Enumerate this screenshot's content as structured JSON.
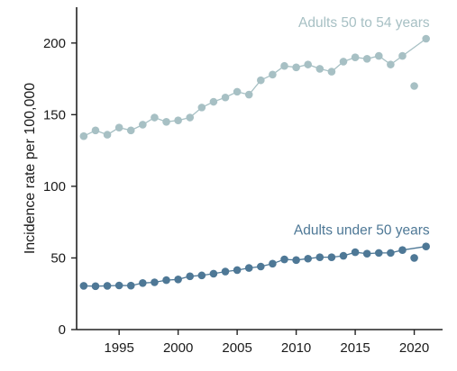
{
  "chart_data": {
    "type": "line",
    "title": "",
    "xlabel": "",
    "ylabel": "Incidence rate per 100,000",
    "xlim": [
      1991.4,
      2022.4
    ],
    "ylim": [
      0,
      225
    ],
    "xticks": [
      1995,
      2000,
      2005,
      2010,
      2015,
      2020
    ],
    "yticks": [
      0,
      50,
      100,
      150,
      200
    ],
    "grid": false,
    "legend": "inline labels",
    "colors": {
      "over50": "#a7c0c4",
      "under50": "#4e7896"
    },
    "x": [
      1992,
      1993,
      1994,
      1995,
      1996,
      1997,
      1998,
      1999,
      2000,
      2001,
      2002,
      2003,
      2004,
      2005,
      2006,
      2007,
      2008,
      2009,
      2010,
      2011,
      2012,
      2013,
      2014,
      2015,
      2016,
      2017,
      2018,
      2019,
      2020,
      2021
    ],
    "series": [
      {
        "name": "Adults 50 to 54 years",
        "values": [
          135,
          139,
          136,
          141,
          139,
          143,
          148,
          145,
          146,
          148,
          155,
          159,
          162,
          166,
          164,
          174,
          178,
          184,
          183,
          185,
          182,
          180,
          187,
          190,
          189,
          191,
          185,
          191,
          170,
          203
        ]
      },
      {
        "name": "Adults under 50 years",
        "values": [
          30.5,
          30.3,
          30.5,
          30.8,
          30.7,
          32.5,
          33.0,
          34.5,
          35.0,
          37.2,
          37.8,
          39.0,
          40.5,
          41.5,
          43.0,
          44.0,
          46.0,
          49.0,
          48.5,
          49.5,
          50.5,
          50.5,
          51.5,
          54.0,
          53.0,
          53.5,
          53.5,
          55.5,
          50.0,
          58.0
        ]
      }
    ],
    "gap_years_excluded_from_line": [
      2020
    ]
  }
}
